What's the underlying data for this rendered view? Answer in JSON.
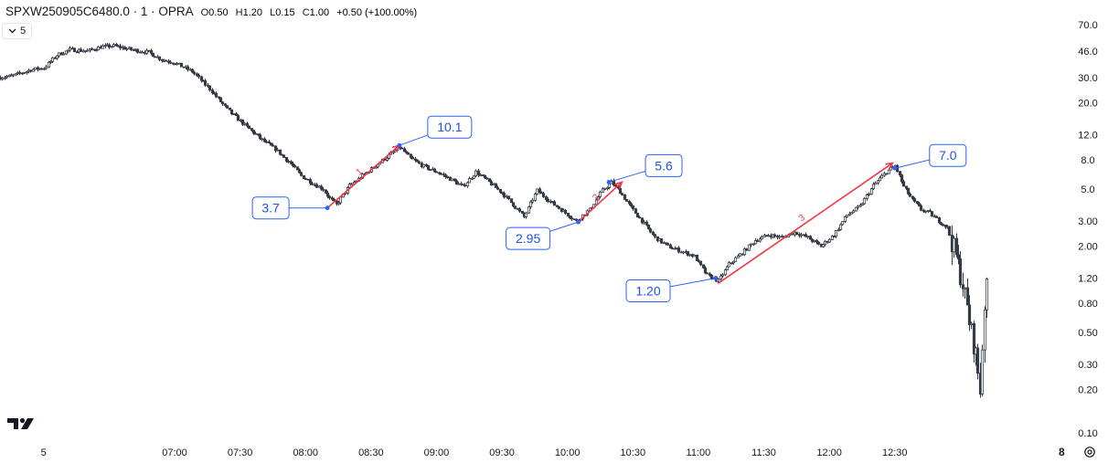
{
  "legend": {
    "symbol": "SPXW250905C6480.0 · 1 · OPRA",
    "open_label": "O",
    "open": "0.50",
    "high_label": "H",
    "high": "1.20",
    "low_label": "L",
    "low": "0.15",
    "close_label": "C",
    "close": "1.00",
    "change": "+0.50 (+100.00%)"
  },
  "toolbar": {
    "collapse_value": "5"
  },
  "corner_label": "8",
  "icons": {
    "collapse": "chevron-down-icon",
    "logo": "tradingview-logo-icon",
    "settings": "gear-icon"
  },
  "colors": {
    "candle": "#363a45",
    "annotation_line": "#2962ff",
    "callout_text": "#1e53e5",
    "trend_arrow": "#f23645",
    "axis_text": "#131722"
  },
  "chart_data": {
    "type": "candlestick",
    "scale": "log",
    "interval_minutes": 1,
    "ylim": [
      0.1,
      90
    ],
    "y_ticks": [
      "70.0",
      "46.0",
      "30.0",
      "20.0",
      "12.0",
      "8.0",
      "5.0",
      "3.00",
      "2.00",
      "1.20",
      "0.80",
      "0.50",
      "0.30",
      "0.20",
      "0.10"
    ],
    "x_ticks": [
      "5",
      "07:00",
      "07:30",
      "08:00",
      "08:30",
      "09:00",
      "09:30",
      "10:00",
      "10:30",
      "11:00",
      "11:30",
      "12:00",
      "12:30"
    ],
    "x_tick_minutes": [
      360,
      420,
      450,
      480,
      510,
      540,
      570,
      600,
      630,
      660,
      690,
      720,
      750
    ],
    "xlim_minutes": [
      340,
      810
    ],
    "path": [
      [
        340,
        30
      ],
      [
        346,
        31
      ],
      [
        354,
        34
      ],
      [
        360,
        35
      ],
      [
        366,
        43
      ],
      [
        372,
        47
      ],
      [
        380,
        46
      ],
      [
        386,
        49
      ],
      [
        392,
        50
      ],
      [
        400,
        47
      ],
      [
        408,
        45
      ],
      [
        414,
        40
      ],
      [
        420,
        38
      ],
      [
        428,
        33
      ],
      [
        436,
        25
      ],
      [
        444,
        18
      ],
      [
        452,
        14
      ],
      [
        460,
        11
      ],
      [
        466,
        9.5
      ],
      [
        472,
        7.8
      ],
      [
        478,
        6.2
      ],
      [
        484,
        5.4
      ],
      [
        488,
        5.0
      ],
      [
        491,
        4.3
      ],
      [
        494,
        3.9
      ],
      [
        500,
        5.3
      ],
      [
        506,
        6.2
      ],
      [
        512,
        7.3
      ],
      [
        518,
        8.6
      ],
      [
        523,
        9.8
      ],
      [
        528,
        8.2
      ],
      [
        534,
        7.2
      ],
      [
        540,
        6.6
      ],
      [
        546,
        5.9
      ],
      [
        552,
        5.2
      ],
      [
        558,
        6.6
      ],
      [
        564,
        5.6
      ],
      [
        570,
        4.7
      ],
      [
        575,
        3.9
      ],
      [
        580,
        3.2
      ],
      [
        586,
        4.9
      ],
      [
        592,
        4.1
      ],
      [
        598,
        3.5
      ],
      [
        604,
        3.0
      ],
      [
        610,
        3.6
      ],
      [
        616,
        4.9
      ],
      [
        620,
        5.6
      ],
      [
        624,
        4.8
      ],
      [
        628,
        3.9
      ],
      [
        634,
        3.0
      ],
      [
        640,
        2.3
      ],
      [
        646,
        2.0
      ],
      [
        652,
        1.85
      ],
      [
        658,
        1.7
      ],
      [
        664,
        1.25
      ],
      [
        669,
        1.15
      ],
      [
        674,
        1.5
      ],
      [
        680,
        1.8
      ],
      [
        686,
        2.2
      ],
      [
        692,
        2.4
      ],
      [
        698,
        2.3
      ],
      [
        704,
        2.5
      ],
      [
        710,
        2.3
      ],
      [
        716,
        2.0
      ],
      [
        722,
        2.4
      ],
      [
        728,
        3.3
      ],
      [
        734,
        3.8
      ],
      [
        740,
        5.3
      ],
      [
        746,
        6.6
      ],
      [
        750,
        7.3
      ],
      [
        754,
        5.2
      ],
      [
        758,
        4.2
      ],
      [
        762,
        3.6
      ],
      [
        766,
        3.4
      ],
      [
        770,
        3.0
      ],
      [
        774,
        2.7
      ],
      [
        778,
        1.7
      ],
      [
        781,
        1.1
      ],
      [
        784,
        0.6
      ],
      [
        787,
        0.35
      ],
      [
        789,
        0.2
      ],
      [
        791,
        0.8
      ],
      [
        792,
        1.0
      ]
    ],
    "trend_arrows": [
      {
        "label": "1",
        "from": [
          490,
          3.7
        ],
        "to": [
          523,
          10.1
        ]
      },
      {
        "label": "2",
        "from": [
          605,
          2.95
        ],
        "to": [
          625,
          5.6
        ]
      },
      {
        "label": "3",
        "from": [
          669,
          1.1
        ],
        "to": [
          749,
          7.6
        ]
      }
    ],
    "callouts": [
      {
        "text": "3.7",
        "x": 490,
        "y": 3.7
      },
      {
        "text": "10.1",
        "x": 523,
        "y": 10.1
      },
      {
        "text": "2.95",
        "x": 605,
        "y": 2.95
      },
      {
        "text": "5.6",
        "x": 619,
        "y": 5.6
      },
      {
        "text": "1.20",
        "x": 668,
        "y": 1.2
      },
      {
        "text": "7.0",
        "x": 750,
        "y": 7.0
      }
    ]
  }
}
